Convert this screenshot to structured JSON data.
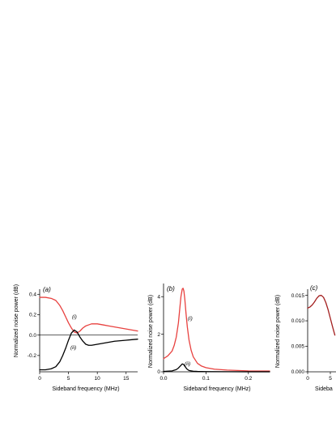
{
  "chart_data": [
    {
      "panel_label": "(a)",
      "type": "line",
      "xlabel": "Sideband frequency (MHz)",
      "ylabel": "Normalized noise power (dB)",
      "xlim": [
        0,
        17
      ],
      "ylim": [
        -0.36,
        0.45
      ],
      "xticks": [
        0,
        5,
        10,
        15
      ],
      "xtick_labels": [
        "0",
        "5",
        "10",
        "15"
      ],
      "yticks": [
        -0.2,
        0.0,
        0.2,
        0.4
      ],
      "ytick_labels": [
        "-0.2",
        "0.0",
        "0.2",
        "0.4"
      ],
      "zero_line": true,
      "series": [
        {
          "label": "(i)",
          "color": "#e8413f",
          "x": [
            0,
            1,
            2,
            2.8,
            3.5,
            4,
            4.5,
            5,
            5.5,
            6,
            6.5,
            7,
            7.5,
            8,
            8.5,
            9,
            10,
            11,
            12,
            13,
            14,
            15,
            16,
            17
          ],
          "y": [
            0.37,
            0.37,
            0.36,
            0.34,
            0.29,
            0.24,
            0.18,
            0.12,
            0.07,
            0.03,
            0.02,
            0.04,
            0.07,
            0.09,
            0.1,
            0.11,
            0.11,
            0.1,
            0.09,
            0.08,
            0.07,
            0.06,
            0.05,
            0.04
          ]
        },
        {
          "label": "(ii)",
          "color": "#000000",
          "x": [
            0,
            1,
            2,
            2.8,
            3.5,
            4,
            4.5,
            5,
            5.5,
            6,
            6.5,
            7,
            7.5,
            8,
            8.5,
            9,
            10,
            11,
            12,
            13,
            14,
            15,
            16,
            17
          ],
          "y": [
            -0.34,
            -0.34,
            -0.33,
            -0.31,
            -0.26,
            -0.2,
            -0.13,
            -0.05,
            0.02,
            0.05,
            0.03,
            -0.02,
            -0.06,
            -0.09,
            -0.1,
            -0.1,
            -0.09,
            -0.08,
            -0.07,
            -0.06,
            -0.055,
            -0.05,
            -0.045,
            -0.04
          ]
        }
      ]
    },
    {
      "panel_label": "(b)",
      "type": "line",
      "xlabel": "Sideband frequency (MHz)",
      "ylabel": "Normalized noise power (dB)",
      "xlim": [
        0,
        0.25
      ],
      "ylim": [
        0,
        4.7
      ],
      "xticks": [
        0.0,
        0.1,
        0.2
      ],
      "xtick_labels": [
        "0.0",
        "0.1",
        "0.2"
      ],
      "yticks": [
        0,
        2,
        4
      ],
      "ytick_labels": [
        "0",
        "2",
        "4"
      ],
      "series": [
        {
          "label": "(i)",
          "color": "#e8413f",
          "x": [
            0.0,
            0.01,
            0.02,
            0.025,
            0.03,
            0.035,
            0.038,
            0.041,
            0.044,
            0.046,
            0.048,
            0.05,
            0.053,
            0.056,
            0.06,
            0.065,
            0.07,
            0.08,
            0.09,
            0.1,
            0.12,
            0.15,
            0.2,
            0.25
          ],
          "y": [
            0.7,
            0.85,
            1.1,
            1.4,
            1.85,
            2.6,
            3.3,
            4.0,
            4.4,
            4.45,
            4.3,
            3.9,
            3.1,
            2.4,
            1.7,
            1.15,
            0.8,
            0.45,
            0.3,
            0.22,
            0.14,
            0.09,
            0.05,
            0.04
          ]
        },
        {
          "label": "(ii)",
          "color": "#000000",
          "x": [
            0.0,
            0.02,
            0.03,
            0.035,
            0.04,
            0.044,
            0.047,
            0.05,
            0.055,
            0.06,
            0.07,
            0.08,
            0.1,
            0.15,
            0.2,
            0.25
          ],
          "y": [
            0.02,
            0.05,
            0.12,
            0.2,
            0.32,
            0.42,
            0.4,
            0.3,
            0.15,
            0.07,
            0.03,
            0.02,
            0.01,
            0.005,
            0.003,
            0.002
          ]
        }
      ]
    },
    {
      "panel_label": "(c)",
      "type": "line",
      "xlabel": "Sideband frequency (MHz)",
      "xlabel_visible": "Sideba",
      "ylabel": "Normalized noise power (dB)",
      "xlim": [
        0,
        10
      ],
      "ylim": [
        0,
        0.0162
      ],
      "xticks": [
        0,
        5
      ],
      "xtick_labels": [
        "0",
        "5"
      ],
      "yticks": [
        0.0,
        0.005,
        0.01,
        0.015
      ],
      "ytick_labels": [
        "0.000",
        "0.005",
        "0.010",
        "0.015"
      ],
      "series": [
        {
          "label": "",
          "color": "#a31f1f",
          "x": [
            0,
            0.5,
            1,
            1.5,
            2,
            2.5,
            3,
            3.5,
            4,
            4.5,
            5,
            5.5,
            6
          ],
          "y": [
            0.0125,
            0.0127,
            0.0131,
            0.0137,
            0.0144,
            0.0149,
            0.015,
            0.0146,
            0.0136,
            0.0122,
            0.0105,
            0.0088,
            0.0072
          ]
        }
      ]
    }
  ]
}
